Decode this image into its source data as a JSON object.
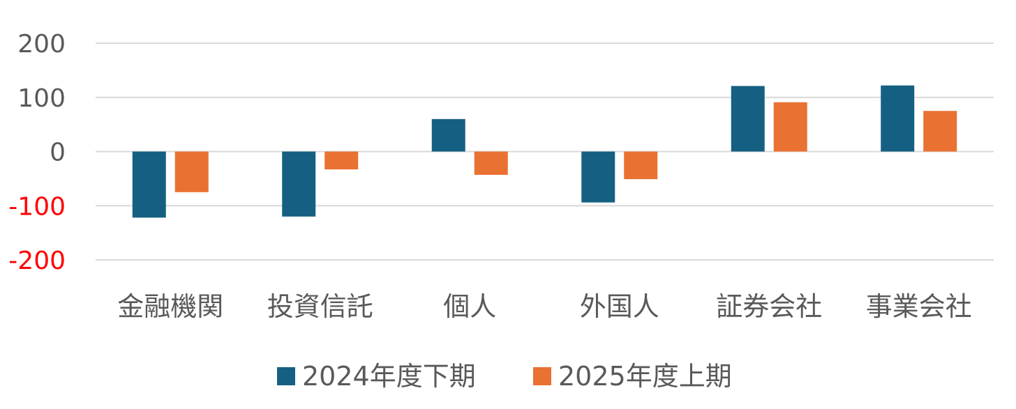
{
  "chart_data": {
    "type": "bar",
    "categories": [
      "金融機関",
      "投資信託",
      "個人",
      "外国人",
      "証券会社",
      "事業会社"
    ],
    "series": [
      {
        "name": "2024年度下期",
        "color": "#156082",
        "values": [
          -122,
          -120,
          60,
          -94,
          121,
          122
        ]
      },
      {
        "name": "2025年度上期",
        "color": "#e97132",
        "values": [
          -75,
          -33,
          -43,
          -51,
          91,
          75
        ]
      }
    ],
    "ylim": [
      -200,
      200
    ],
    "yticks": [
      200,
      100,
      0,
      -100,
      -200
    ],
    "ytick_labels": [
      "200",
      "100",
      "0",
      "-100",
      "-200"
    ],
    "negative_tick_color": "#ff0000",
    "grid": true,
    "legend_position": "bottom"
  }
}
